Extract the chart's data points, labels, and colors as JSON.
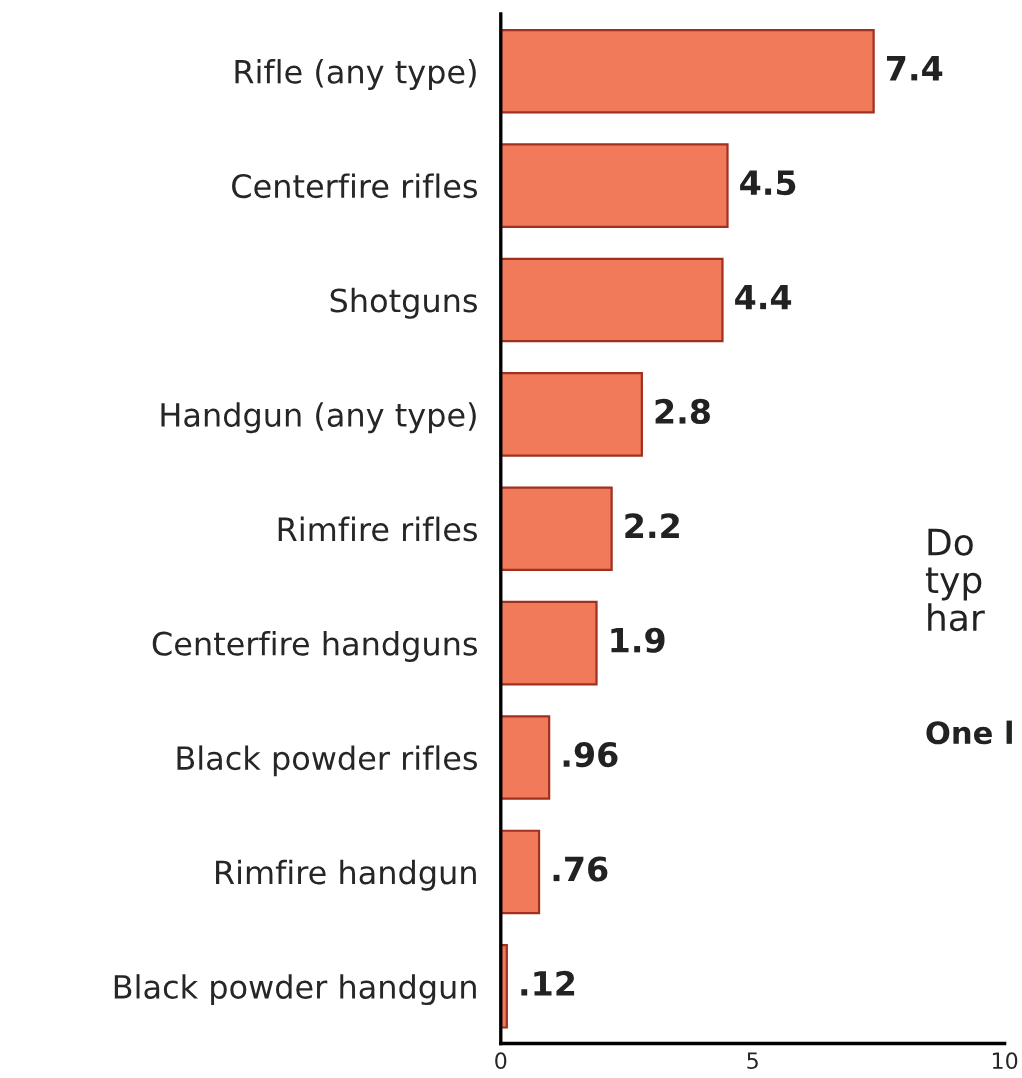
{
  "chart_data": {
    "type": "bar",
    "orientation": "horizontal",
    "categories": [
      "Rifle (any type)",
      "Centerfire rifles",
      "Shotguns",
      "Handgun (any type)",
      "Rimfire rifles",
      "Centerfire handguns",
      "Black powder rifles",
      "Rimfire handgun",
      "Black powder handgun"
    ],
    "values": [
      7.4,
      4.5,
      4.4,
      2.8,
      2.2,
      1.9,
      0.96,
      0.76,
      0.12
    ],
    "value_labels": [
      "7.4",
      "4.5",
      "4.4",
      "2.8",
      "2.2",
      "1.9",
      ".96",
      ".76",
      ".12"
    ],
    "color": "#f07a5a",
    "xlim": [
      0,
      10
    ],
    "xticks": [
      0,
      5,
      10
    ],
    "grid": false,
    "legend": false,
    "annotations": [
      "Do",
      "typ",
      "har",
      "One l"
    ]
  }
}
